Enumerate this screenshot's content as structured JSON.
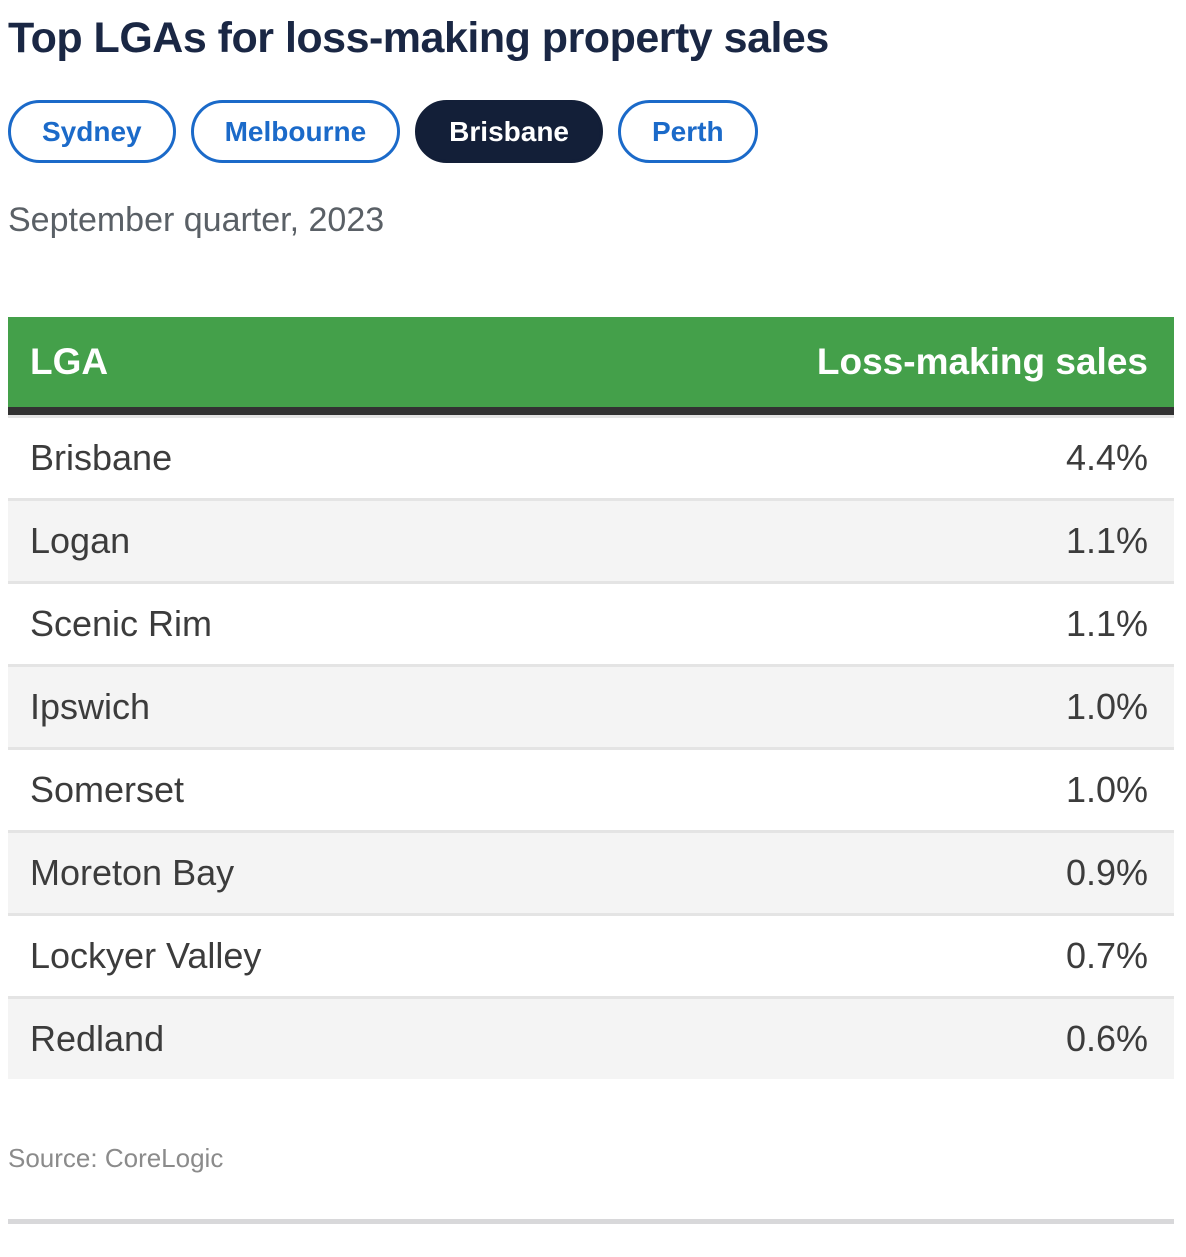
{
  "page": {
    "title": "Top LGAs for loss-making property sales",
    "subtitle": "September quarter, 2023",
    "source": "Source: CoreLogic"
  },
  "tabs": [
    {
      "label": "Sydney",
      "active": false
    },
    {
      "label": "Melbourne",
      "active": false
    },
    {
      "label": "Brisbane",
      "active": true
    },
    {
      "label": "Perth",
      "active": false
    }
  ],
  "chart_data": {
    "type": "table",
    "title": "Top LGAs for loss-making property sales",
    "subtitle": "September quarter, 2023",
    "columns": [
      "LGA",
      "Loss-making sales"
    ],
    "rows": [
      [
        "Brisbane",
        "4.4%"
      ],
      [
        "Logan",
        "1.1%"
      ],
      [
        "Scenic Rim",
        "1.1%"
      ],
      [
        "Ipswich",
        "1.0%"
      ],
      [
        "Somerset",
        "1.0%"
      ],
      [
        "Moreton Bay",
        "0.9%"
      ],
      [
        "Lockyer Valley",
        "0.7%"
      ],
      [
        "Redland",
        "0.6%"
      ]
    ],
    "source": "Source: CoreLogic",
    "layout_hints": {
      "header_background": "#44a04a",
      "header_text_color": "#ffffff",
      "alternating_row_color": "#f4f4f4",
      "selected_tab": "Brisbane"
    }
  },
  "colors": {
    "title_navy": "#1a2744",
    "tab_blue": "#1b6ac9",
    "active_tab_navy": "#131f38",
    "header_green": "#44a04a",
    "header_rule_dark": "#323232",
    "row_alt_gray": "#f4f4f4",
    "divider_gray": "#d8d8da"
  }
}
